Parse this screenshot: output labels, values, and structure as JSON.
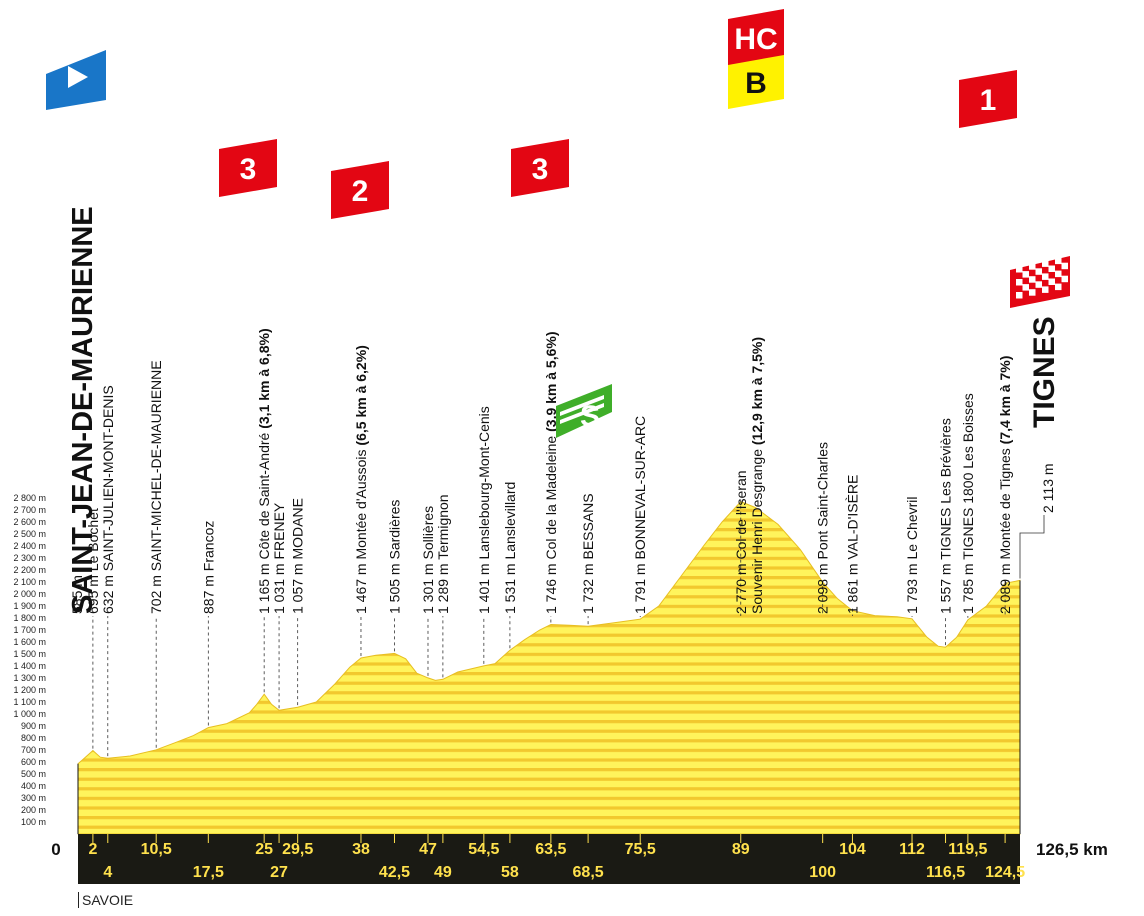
{
  "chart_data": {
    "type": "area",
    "title": "",
    "xlabel": "",
    "ylabel": "",
    "xlim": [
      0,
      126.5
    ],
    "ylim": [
      0,
      2800
    ],
    "y_ticks": [
      "100 m",
      "200 m",
      "300 m",
      "400 m",
      "500 m",
      "600 m",
      "700 m",
      "800 m",
      "900 m",
      "1 000 m",
      "1 100 m",
      "1 200 m",
      "1 300 m",
      "1 400 m",
      "1 500 m",
      "1 600 m",
      "1 700 m",
      "1 800 m",
      "1 900 m",
      "2 000 m",
      "2 100 m",
      "2 200 m",
      "2 300 m",
      "2 400 m",
      "2 500 m",
      "2 600 m",
      "2 700 m",
      "2 800 m"
    ],
    "profile": [
      [
        0,
        585
      ],
      [
        1,
        640
      ],
      [
        2,
        695
      ],
      [
        3,
        640
      ],
      [
        4,
        632
      ],
      [
        7,
        650
      ],
      [
        10.5,
        702
      ],
      [
        13,
        760
      ],
      [
        15.5,
        820
      ],
      [
        17.5,
        887
      ],
      [
        20,
        920
      ],
      [
        23,
        1010
      ],
      [
        24,
        1080
      ],
      [
        25,
        1165
      ],
      [
        26,
        1080
      ],
      [
        27,
        1031
      ],
      [
        29.5,
        1057
      ],
      [
        32,
        1100
      ],
      [
        34.5,
        1250
      ],
      [
        36.5,
        1390
      ],
      [
        38,
        1467
      ],
      [
        40,
        1490
      ],
      [
        42.5,
        1505
      ],
      [
        44,
        1460
      ],
      [
        45.5,
        1340
      ],
      [
        47,
        1301
      ],
      [
        48,
        1280
      ],
      [
        49,
        1289
      ],
      [
        51,
        1350
      ],
      [
        54.5,
        1401
      ],
      [
        56,
        1420
      ],
      [
        58,
        1531
      ],
      [
        60,
        1620
      ],
      [
        62,
        1700
      ],
      [
        63.5,
        1746
      ],
      [
        66,
        1740
      ],
      [
        68.5,
        1732
      ],
      [
        72,
        1760
      ],
      [
        75.5,
        1791
      ],
      [
        78,
        1900
      ],
      [
        81,
        2150
      ],
      [
        84,
        2400
      ],
      [
        86.5,
        2600
      ],
      [
        89,
        2770
      ],
      [
        91,
        2720
      ],
      [
        94,
        2580
      ],
      [
        97,
        2370
      ],
      [
        100,
        2098
      ],
      [
        102,
        1960
      ],
      [
        104,
        1861
      ],
      [
        107,
        1820
      ],
      [
        110,
        1810
      ],
      [
        112,
        1793
      ],
      [
        114,
        1640
      ],
      [
        115.5,
        1565
      ],
      [
        116.5,
        1557
      ],
      [
        118,
        1640
      ],
      [
        119.5,
        1785
      ],
      [
        122,
        1900
      ],
      [
        124.5,
        2089
      ],
      [
        126.5,
        2113
      ]
    ],
    "points": [
      {
        "km": 0,
        "label": "585 m"
      },
      {
        "km": 2,
        "label": "695 m Le Bochet"
      },
      {
        "km": 4,
        "label": "632 m SAINT-JULIEN-MONT-DENIS"
      },
      {
        "km": 10.5,
        "label": "702 m SAINT-MICHEL-DE-MAURIENNE"
      },
      {
        "km": 17.5,
        "label": "887 m Francoz"
      },
      {
        "km": 25,
        "label": "1 165 m Côte de Saint-André",
        "extra": "(3,1 km à 6,8%)",
        "category": "3"
      },
      {
        "km": 27,
        "label": "1 031 m FRENEY"
      },
      {
        "km": 29.5,
        "label": "1 057 m MODANE"
      },
      {
        "km": 38,
        "label": "1 467 m Montée d'Aussois",
        "extra": "(6,5 km à 6,2%)",
        "category": "2"
      },
      {
        "km": 42.5,
        "label": "1 505 m Sardières"
      },
      {
        "km": 47,
        "label": "1 301 m Sollières"
      },
      {
        "km": 49,
        "label": "1 289 m Termignon"
      },
      {
        "km": 54.5,
        "label": "1 401 m Lanslebourg-Mont-Cenis"
      },
      {
        "km": 58,
        "label": "1 531 m Lanslevillard"
      },
      {
        "km": 63.5,
        "label": "1 746 m Col de la Madeleine",
        "extra": "(3,9 km à 5,6%)",
        "category": "3"
      },
      {
        "km": 68.5,
        "label": "1 732 m BESSANS"
      },
      {
        "km": 75.5,
        "label": "1 791 m BONNEVAL-SUR-ARC"
      },
      {
        "km": 89,
        "label": "2 770 m Col de l'Iseran",
        "label2": "Souvenir Henri Desgrange",
        "extra": "(12,9 km à 7,5%)",
        "category": "HC"
      },
      {
        "km": 100,
        "label": "2 098 m Pont Saint-Charles"
      },
      {
        "km": 104,
        "label": "1 861 m VAL-D'ISÈRE"
      },
      {
        "km": 112,
        "label": "1 793 m Le Chevril"
      },
      {
        "km": 116.5,
        "label": "1 557 m TIGNES Les Brévières"
      },
      {
        "km": 119.5,
        "label": "1 785 m TIGNES 1800 Les Boisses"
      },
      {
        "km": 124.5,
        "label": "2 089 m Montée de Tignes",
        "extra": "(7,4 km à 7%)",
        "category": "1"
      },
      {
        "km": 126.5,
        "label": "2 113 m"
      }
    ],
    "km_top": [
      "2",
      "10,5",
      "25",
      "29,5",
      "38",
      "47",
      "54,5",
      "63,5",
      "75,5",
      "89",
      "104",
      "112",
      "119,5"
    ],
    "km_top_pos": [
      2,
      10.5,
      25,
      29.5,
      38,
      47,
      54.5,
      63.5,
      75.5,
      89,
      104,
      112,
      119.5
    ],
    "km_bottom": [
      "4",
      "17,5",
      "27",
      "42,5",
      "49",
      "58",
      "68,5",
      "100",
      "116,5",
      "124,5"
    ],
    "km_bottom_pos": [
      4,
      17.5,
      27,
      42.5,
      49,
      58,
      68.5,
      100,
      116.5,
      124.5
    ],
    "start_km_label": "0",
    "end_km_label": "126,5 km",
    "start_town": "SAINT-JEAN-DE-MAURIENNE",
    "finish_town": "TIGNES",
    "climb_flags": [
      {
        "km": 25,
        "text": "3",
        "color": "#e30613"
      },
      {
        "km": 38,
        "text": "2",
        "color": "#e30613"
      },
      {
        "km": 63.5,
        "text": "3",
        "color": "#e30613"
      },
      {
        "km": 89,
        "text": "HC",
        "color": "#e30613"
      },
      {
        "km": 124.5,
        "text": "1",
        "color": "#e30613"
      }
    ],
    "bonus_flag": {
      "km": 89,
      "text": "B",
      "color": "#fff200"
    },
    "sprint_flag": {
      "km": 68.5,
      "text": "S",
      "color": "#3fae29"
    },
    "colors": {
      "fill": "#fff45c",
      "stripe": "#f2c82e",
      "strip": "#1a1a14",
      "strip_text": "#ffe14d",
      "start_flag": "#1976c8"
    }
  },
  "region": "SAVOIE"
}
